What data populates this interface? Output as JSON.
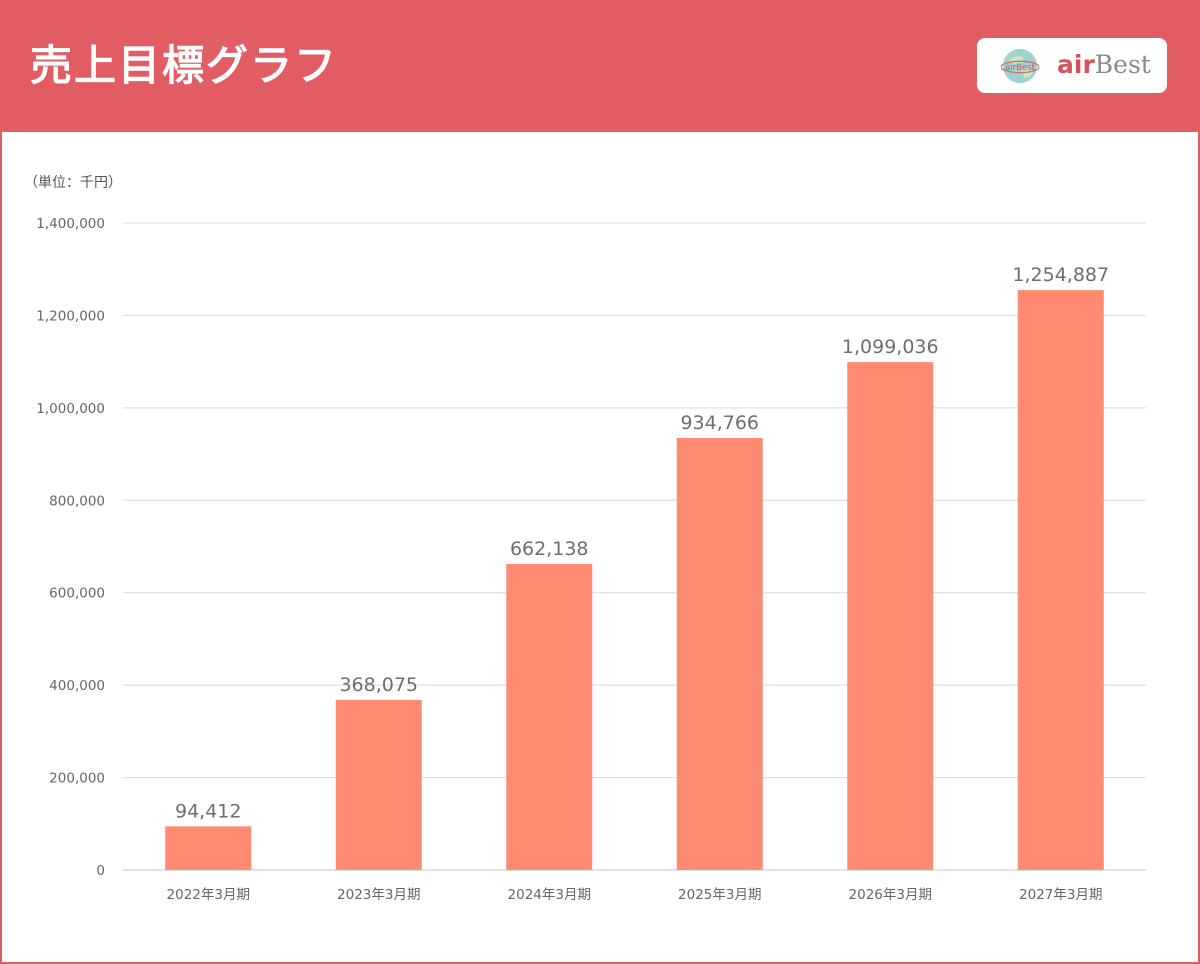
{
  "header": {
    "title": "売上目標グラフ",
    "logo": {
      "air": "air",
      "best": "Best",
      "globe_text": "airBest"
    }
  },
  "colors": {
    "accent": "#e25c63",
    "bar": "#ff8a72",
    "gridline": "#d9d9d9"
  },
  "chart_data": {
    "type": "bar",
    "unit_label": "（単位：千円）",
    "categories": [
      "2022年3月期",
      "2023年3月期",
      "2024年3月期",
      "2025年3月期",
      "2026年3月期",
      "2027年3月期"
    ],
    "values": [
      94412,
      368075,
      662138,
      934766,
      1099036,
      1254887
    ],
    "value_labels": [
      "94,412",
      "368,075",
      "662,138",
      "934,766",
      "1,099,036",
      "1,254,887"
    ],
    "ylim": [
      0,
      1400000
    ],
    "yticks": [
      0,
      200000,
      400000,
      600000,
      800000,
      1000000,
      1200000,
      1400000
    ],
    "ytick_labels": [
      "0",
      "200,000",
      "400,000",
      "600,000",
      "800,000",
      "1,000,000",
      "1,200,000",
      "1,400,000"
    ],
    "grid": true,
    "legend": "none"
  }
}
